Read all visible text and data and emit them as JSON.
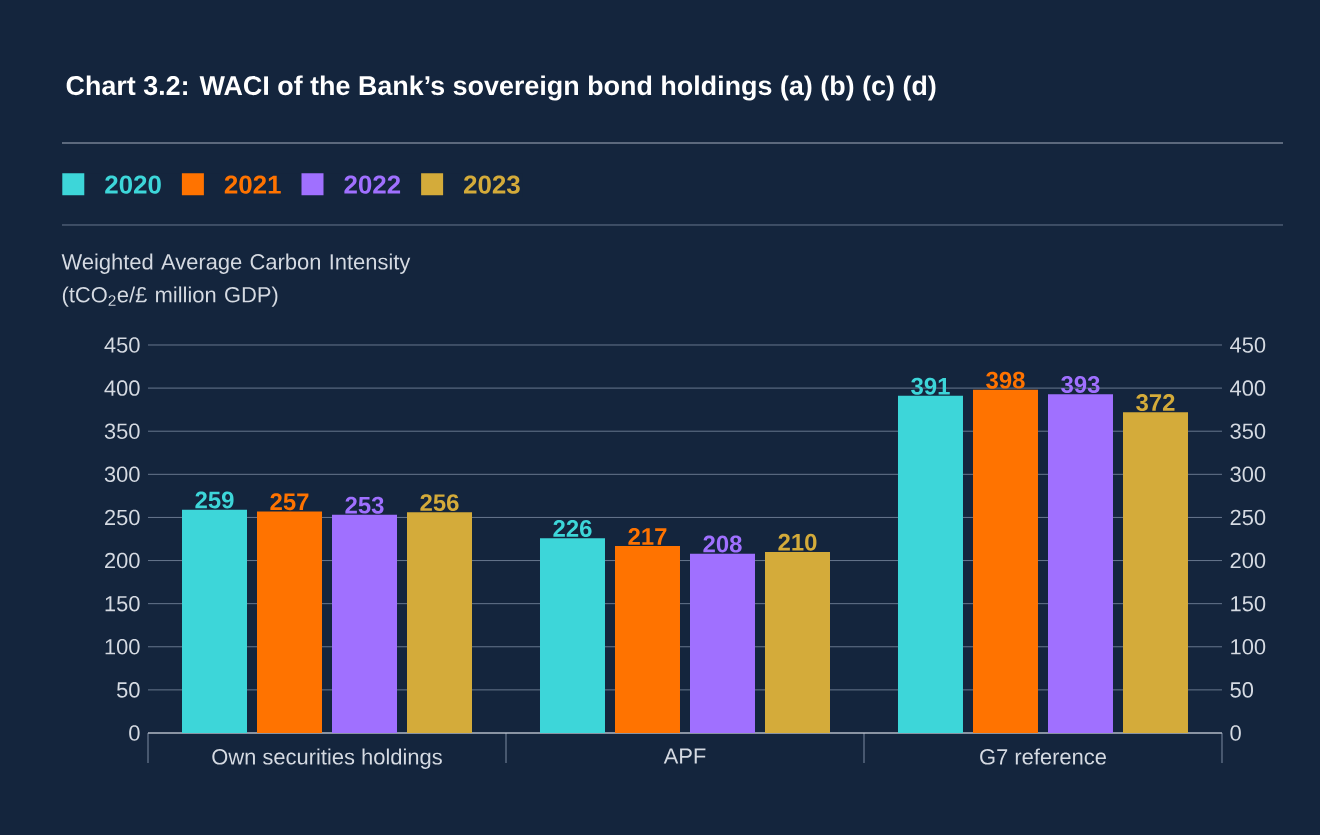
{
  "chart_data": {
    "type": "bar",
    "title": "Chart 3.2: WACI of the Bank’s sovereign bond holdings (a) (b) (c) (d)",
    "ylabel": "Weighted Average Carbon Intensity (tCO$_{2}$e/£ million GDP)",
    "categories": [
      "Own securities holdings",
      "APF",
      "G7 reference"
    ],
    "series": [
      {
        "name": "2020",
        "color": "#3dd6d9",
        "values": [
          259,
          226,
          391
        ]
      },
      {
        "name": "2021",
        "color": "#ff7300",
        "values": [
          257,
          217,
          398
        ]
      },
      {
        "name": "2022",
        "color": "#a070ff",
        "values": [
          253,
          208,
          393
        ]
      },
      {
        "name": "2023",
        "color": "#d4ab3a",
        "values": [
          256,
          210,
          372
        ]
      }
    ],
    "ylim": [
      0,
      450
    ],
    "yticks": [
      0,
      50,
      100,
      150,
      200,
      250,
      300,
      350,
      400,
      450
    ],
    "y2lim": [
      0,
      450
    ],
    "y2ticks": [
      0,
      50,
      100,
      150,
      200,
      250,
      300,
      350,
      400,
      450
    ],
    "grid": "y",
    "legend": "top left",
    "data_labels": true
  }
}
